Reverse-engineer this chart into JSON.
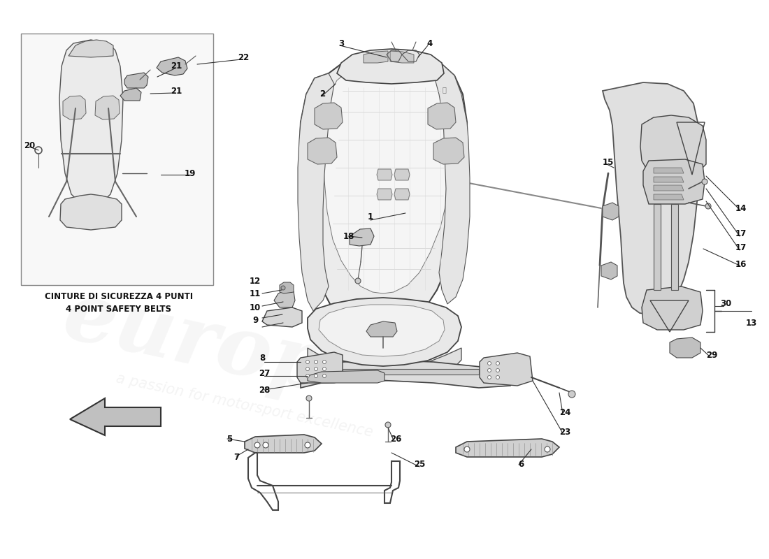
{
  "bg_color": "#ffffff",
  "caption_line1": "CINTURE DI SICUREZZA 4 PUNTI",
  "caption_line2": "4 POINT SAFETY BELTS",
  "watermark1": "europ",
  "watermark2": "a passion for motorsport excellence",
  "figure_width": 11.0,
  "figure_height": 8.0,
  "line_color": "#333333",
  "seat_fill": "#f0f0f0",
  "seat_edge": "#444444",
  "part_numbers": [
    [
      "1",
      530,
      310
    ],
    [
      "2",
      461,
      135
    ],
    [
      "3",
      488,
      62
    ],
    [
      "4",
      615,
      62
    ],
    [
      "5",
      328,
      628
    ],
    [
      "6",
      745,
      665
    ],
    [
      "7",
      338,
      655
    ],
    [
      "8",
      375,
      513
    ],
    [
      "9",
      365,
      458
    ],
    [
      "10",
      365,
      440
    ],
    [
      "11",
      365,
      420
    ],
    [
      "12",
      365,
      402
    ],
    [
      "13",
      1075,
      463
    ],
    [
      "14",
      1060,
      298
    ],
    [
      "15",
      870,
      232
    ],
    [
      "16",
      1060,
      378
    ],
    [
      "17",
      1060,
      335
    ],
    [
      "17",
      1060,
      355
    ],
    [
      "18",
      499,
      338
    ],
    [
      "19",
      272,
      248
    ],
    [
      "20",
      42,
      208
    ],
    [
      "21",
      252,
      95
    ],
    [
      "21",
      252,
      130
    ],
    [
      "22",
      348,
      82
    ],
    [
      "23",
      808,
      618
    ],
    [
      "24",
      808,
      590
    ],
    [
      "25",
      600,
      665
    ],
    [
      "26",
      566,
      628
    ],
    [
      "27",
      378,
      535
    ],
    [
      "28",
      378,
      558
    ],
    [
      "29",
      1018,
      508
    ],
    [
      "30",
      1038,
      435
    ]
  ]
}
